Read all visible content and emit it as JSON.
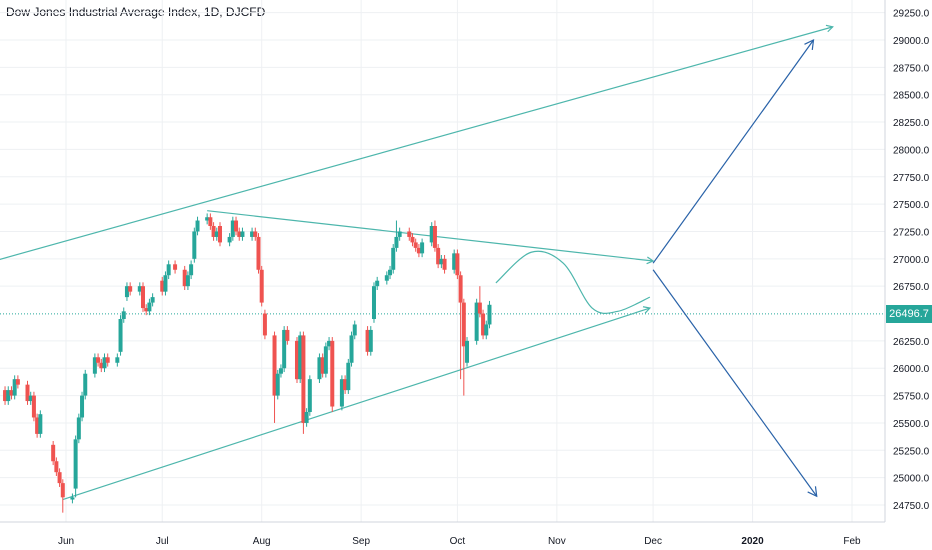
{
  "chart_data": {
    "type": "candlestick",
    "title": "Dow Jones Industrial Average Index, 1D, DJCFD",
    "last_price": "26496.7",
    "colors": {
      "up": "#26a69a",
      "down": "#ef5350",
      "annotation": "#4db6ac",
      "arrow": "#2962a8",
      "grid": "#eef0f3"
    },
    "y_axis": {
      "ticks": [
        "29250.0",
        "29000.0",
        "28750.0",
        "28500.0",
        "28250.0",
        "28000.0",
        "27750.0",
        "27500.0",
        "27250.0",
        "27000.0",
        "26750.0",
        "26250.0",
        "26000.0",
        "25750.0",
        "25500.0",
        "25250.0",
        "25000.0",
        "24750.0"
      ],
      "range": [
        24620,
        29420
      ]
    },
    "x_axis": {
      "ticks": [
        {
          "label": "Jun",
          "date": "2019-06-01"
        },
        {
          "label": "Jul",
          "date": "2019-07-01"
        },
        {
          "label": "Aug",
          "date": "2019-08-01"
        },
        {
          "label": "Sep",
          "date": "2019-09-01"
        },
        {
          "label": "Oct",
          "date": "2019-10-01"
        },
        {
          "label": "Nov",
          "date": "2019-11-01"
        },
        {
          "label": "Dec",
          "date": "2019-12-01"
        },
        {
          "label": "2020",
          "date": "2020-01-01",
          "bold": true
        },
        {
          "label": "Feb",
          "date": "2020-02-01"
        }
      ]
    },
    "candles": [
      [
        "2019-05-06",
        25650,
        25550
      ],
      [
        "2019-05-07",
        25550,
        25300
      ],
      [
        "2019-05-08",
        25300,
        25450
      ],
      [
        "2019-05-09",
        25450,
        25600
      ],
      [
        "2019-05-10",
        25600,
        25800
      ],
      [
        "2019-05-13",
        25800,
        25700
      ],
      [
        "2019-05-14",
        25700,
        25800
      ],
      [
        "2019-05-15",
        25800,
        25750
      ],
      [
        "2019-05-16",
        25750,
        25900
      ],
      [
        "2019-05-17",
        25900,
        25850
      ],
      [
        "2019-05-20",
        25850,
        25700
      ],
      [
        "2019-05-21",
        25700,
        25750
      ],
      [
        "2019-05-22",
        25750,
        25550
      ],
      [
        "2019-05-23",
        25550,
        25400
      ],
      [
        "2019-05-24",
        25400,
        25580
      ],
      [
        "2019-05-28",
        25300,
        25150
      ],
      [
        "2019-05-29",
        25150,
        25050
      ],
      [
        "2019-05-30",
        25050,
        24950
      ],
      [
        "2019-05-31",
        24950,
        24820
      ],
      [
        "2019-06-03",
        24800,
        24820
      ],
      [
        "2019-06-04",
        24900,
        25350
      ],
      [
        "2019-06-05",
        25350,
        25550
      ],
      [
        "2019-06-06",
        25550,
        25750
      ],
      [
        "2019-06-07",
        25750,
        25950
      ],
      [
        "2019-06-10",
        25950,
        26100
      ],
      [
        "2019-06-11",
        26100,
        26050
      ],
      [
        "2019-06-12",
        26050,
        26000
      ],
      [
        "2019-06-13",
        26000,
        26100
      ],
      [
        "2019-06-14",
        26100,
        26050
      ],
      [
        "2019-06-17",
        26050,
        26100
      ],
      [
        "2019-06-18",
        26150,
        26450
      ],
      [
        "2019-06-19",
        26450,
        26520
      ],
      [
        "2019-06-20",
        26650,
        26750
      ],
      [
        "2019-06-21",
        26750,
        26700
      ],
      [
        "2019-06-24",
        26700,
        26750
      ],
      [
        "2019-06-25",
        26750,
        26550
      ],
      [
        "2019-06-26",
        26550,
        26520
      ],
      [
        "2019-06-27",
        26520,
        26600
      ],
      [
        "2019-06-28",
        26600,
        26650
      ],
      [
        "2019-07-01",
        26800,
        26700
      ],
      [
        "2019-07-02",
        26700,
        26850
      ],
      [
        "2019-07-03",
        26850,
        26950
      ],
      [
        "2019-07-05",
        26950,
        26900
      ],
      [
        "2019-07-08",
        26900,
        26750
      ],
      [
        "2019-07-09",
        26750,
        26850
      ],
      [
        "2019-07-10",
        26850,
        26950
      ],
      [
        "2019-07-11",
        27000,
        27250
      ],
      [
        "2019-07-12",
        27250,
        27350
      ],
      [
        "2019-07-15",
        27350,
        27380
      ],
      [
        "2019-07-16",
        27380,
        27300
      ],
      [
        "2019-07-17",
        27300,
        27200
      ],
      [
        "2019-07-18",
        27200,
        27250
      ],
      [
        "2019-07-19",
        27300,
        27150
      ],
      [
        "2019-07-22",
        27150,
        27200
      ],
      [
        "2019-07-23",
        27200,
        27350
      ],
      [
        "2019-07-24",
        27350,
        27250
      ],
      [
        "2019-07-25",
        27250,
        27200
      ],
      [
        "2019-07-26",
        27200,
        27250
      ],
      [
        "2019-07-29",
        27200,
        27250
      ],
      [
        "2019-07-30",
        27250,
        27200
      ],
      [
        "2019-07-31",
        27200,
        26900
      ],
      [
        "2019-08-01",
        26900,
        26600
      ],
      [
        "2019-08-02",
        26500,
        26300
      ],
      [
        "2019-08-05",
        26300,
        25750
      ],
      [
        "2019-08-06",
        25750,
        25950
      ],
      [
        "2019-08-07",
        25950,
        26000
      ],
      [
        "2019-08-08",
        26000,
        26350
      ],
      [
        "2019-08-09",
        26350,
        26250
      ],
      [
        "2019-08-12",
        26250,
        25900
      ],
      [
        "2019-08-13",
        25900,
        26300
      ],
      [
        "2019-08-14",
        26300,
        25500
      ],
      [
        "2019-08-15",
        25500,
        25600
      ],
      [
        "2019-08-16",
        25600,
        25900
      ],
      [
        "2019-08-19",
        25900,
        26100
      ],
      [
        "2019-08-20",
        26100,
        25950
      ],
      [
        "2019-08-21",
        25950,
        26200
      ],
      [
        "2019-08-22",
        26200,
        26250
      ],
      [
        "2019-08-23",
        26250,
        25650
      ],
      [
        "2019-08-26",
        25650,
        25900
      ],
      [
        "2019-08-27",
        25900,
        25800
      ],
      [
        "2019-08-28",
        25800,
        26050
      ],
      [
        "2019-08-29",
        26050,
        26300
      ],
      [
        "2019-08-30",
        26300,
        26400
      ],
      [
        "2019-09-03",
        26350,
        26150
      ],
      [
        "2019-09-04",
        26150,
        26350
      ],
      [
        "2019-09-05",
        26450,
        26750
      ],
      [
        "2019-09-06",
        26750,
        26800
      ],
      [
        "2019-09-09",
        26800,
        26850
      ],
      [
        "2019-09-10",
        26850,
        26900
      ],
      [
        "2019-09-11",
        26900,
        27100
      ],
      [
        "2019-09-12",
        27100,
        27200
      ],
      [
        "2019-09-13",
        27200,
        27250
      ],
      [
        "2019-09-16",
        27250,
        27200
      ],
      [
        "2019-09-17",
        27200,
        27150
      ],
      [
        "2019-09-18",
        27150,
        27100
      ],
      [
        "2019-09-19",
        27100,
        27050
      ],
      [
        "2019-09-20",
        27050,
        27150
      ],
      [
        "2019-09-23",
        27150,
        27300
      ],
      [
        "2019-09-24",
        27300,
        27100
      ],
      [
        "2019-09-25",
        27100,
        26950
      ],
      [
        "2019-09-26",
        26950,
        27000
      ],
      [
        "2019-09-27",
        27000,
        26900
      ],
      [
        "2019-09-30",
        26900,
        27050
      ],
      [
        "2019-10-01",
        27050,
        26850
      ],
      [
        "2019-10-02",
        26850,
        26600
      ],
      [
        "2019-10-03",
        26600,
        26200
      ],
      [
        "2019-10-04",
        26050,
        26250
      ],
      [
        "2019-10-07",
        26250,
        26600
      ],
      [
        "2019-10-08",
        26600,
        26500
      ],
      [
        "2019-10-09",
        26500,
        26300
      ],
      [
        "2019-10-10",
        26300,
        26400
      ],
      [
        "2019-10-11",
        26400,
        26580
      ]
    ],
    "wicks": {
      "2019-05-31": 24680,
      "2019-06-04": 24820,
      "2019-08-05": 25500,
      "2019-08-14": 25400,
      "2019-08-23": 25600,
      "2019-09-12": 27350,
      "2019-09-24": 27350,
      "2019-10-02": 25900,
      "2019-10-03": 25750,
      "2019-10-08": 26750
    },
    "annotations": {
      "upper_channel": [
        [
          "2019-04-20",
          26820
        ],
        [
          "2020-01-26",
          29120
        ]
      ],
      "upper_trend": [
        [
          "2019-07-15",
          27440
        ],
        [
          "2019-12-01",
          26980
        ]
      ],
      "lower_trend": [
        [
          "2019-05-31",
          24800
        ],
        [
          "2019-11-30",
          26550
        ]
      ],
      "forecast_curve": [
        [
          "2019-10-13",
          26780
        ],
        [
          "2019-10-24",
          27060
        ],
        [
          "2019-11-03",
          26960
        ],
        [
          "2019-11-12",
          26550
        ],
        [
          "2019-11-20",
          26520
        ],
        [
          "2019-11-30",
          26650
        ]
      ],
      "arrow_up": [
        [
          "2019-12-01",
          26960
        ],
        [
          "2020-01-20",
          29000
        ]
      ],
      "arrow_down": [
        [
          "2019-12-01",
          26900
        ],
        [
          "2020-01-21",
          24830
        ]
      ]
    }
  }
}
